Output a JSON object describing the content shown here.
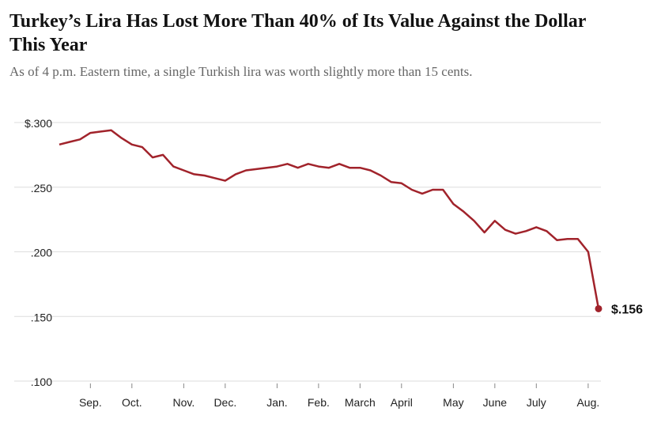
{
  "chart_data": {
    "type": "line",
    "title": "Turkey’s Lira Has Lost More Than 40% of Its Value Against the Dollar This Year",
    "subtitle": "As of 4 p.m. Eastern time, a single Turkish lira was worth slightly more than 15 cents.",
    "categories": [
      null,
      null,
      null,
      "Sep.",
      null,
      null,
      null,
      "Oct.",
      null,
      null,
      null,
      null,
      "Nov.",
      null,
      null,
      null,
      "Dec.",
      null,
      null,
      null,
      null,
      "Jan.",
      null,
      null,
      null,
      "Feb.",
      null,
      null,
      null,
      "March",
      null,
      null,
      null,
      "April",
      null,
      null,
      null,
      null,
      "May",
      null,
      null,
      null,
      "June",
      null,
      null,
      null,
      "July",
      null,
      null,
      null,
      null,
      "Aug.",
      null
    ],
    "series": [
      {
        "name": "Lira",
        "color": "#a1232b",
        "values": [
          0.283,
          0.285,
          0.287,
          0.292,
          0.293,
          0.294,
          0.288,
          0.283,
          0.281,
          0.273,
          0.275,
          0.266,
          0.263,
          0.26,
          0.259,
          0.257,
          0.255,
          0.26,
          0.263,
          0.264,
          0.265,
          0.266,
          0.268,
          0.265,
          0.268,
          0.266,
          0.265,
          0.268,
          0.265,
          0.265,
          0.263,
          0.259,
          0.254,
          0.253,
          0.248,
          0.245,
          0.248,
          0.248,
          0.237,
          0.231,
          0.224,
          0.215,
          0.224,
          0.217,
          0.214,
          0.216,
          0.219,
          0.216,
          0.209,
          0.21,
          0.21,
          0.2,
          0.156
        ],
        "value_labels": [
          null,
          null,
          null,
          null,
          null,
          null,
          null,
          null,
          null,
          null,
          null,
          null,
          null,
          null,
          null,
          null,
          null,
          null,
          null,
          null,
          null,
          null,
          null,
          null,
          null,
          null,
          null,
          null,
          null,
          null,
          null,
          null,
          null,
          null,
          null,
          null,
          null,
          null,
          null,
          null,
          null,
          null,
          null,
          null,
          null,
          null,
          null,
          null,
          null,
          null,
          null,
          null,
          "$.156"
        ]
      }
    ],
    "ylim": [
      0.1,
      0.3
    ],
    "yticks": [
      {
        "value": 0.1,
        "label": ".100"
      },
      {
        "value": 0.15,
        "label": ".150"
      },
      {
        "value": 0.2,
        "label": ".200"
      },
      {
        "value": 0.25,
        "label": ".250"
      },
      {
        "value": 0.3,
        "label": "$.300"
      }
    ],
    "grid": true
  }
}
